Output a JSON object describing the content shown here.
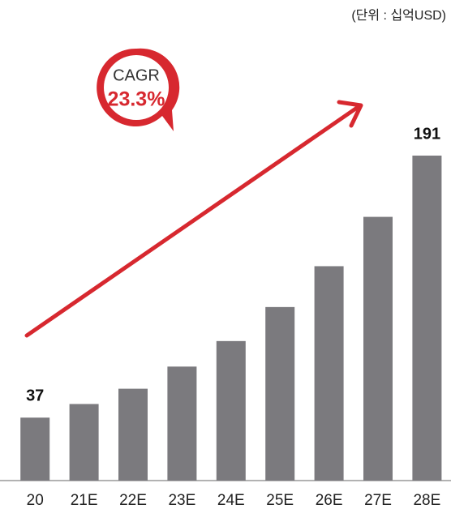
{
  "chart_data": {
    "type": "bar",
    "unit_note": "(단위 : 십억USD)",
    "badge_title": "CAGR",
    "badge_value": "23.3%",
    "categories": [
      "20",
      "21E",
      "22E",
      "23E",
      "24E",
      "25E",
      "26E",
      "27E",
      "28E"
    ],
    "values": [
      37,
      45,
      54,
      67,
      82,
      102,
      126,
      155,
      191
    ],
    "value_labels": [
      "37",
      null,
      null,
      null,
      null,
      null,
      null,
      null,
      "191"
    ],
    "color": "#7b7a7e",
    "accent_color": "#d7282f"
  }
}
